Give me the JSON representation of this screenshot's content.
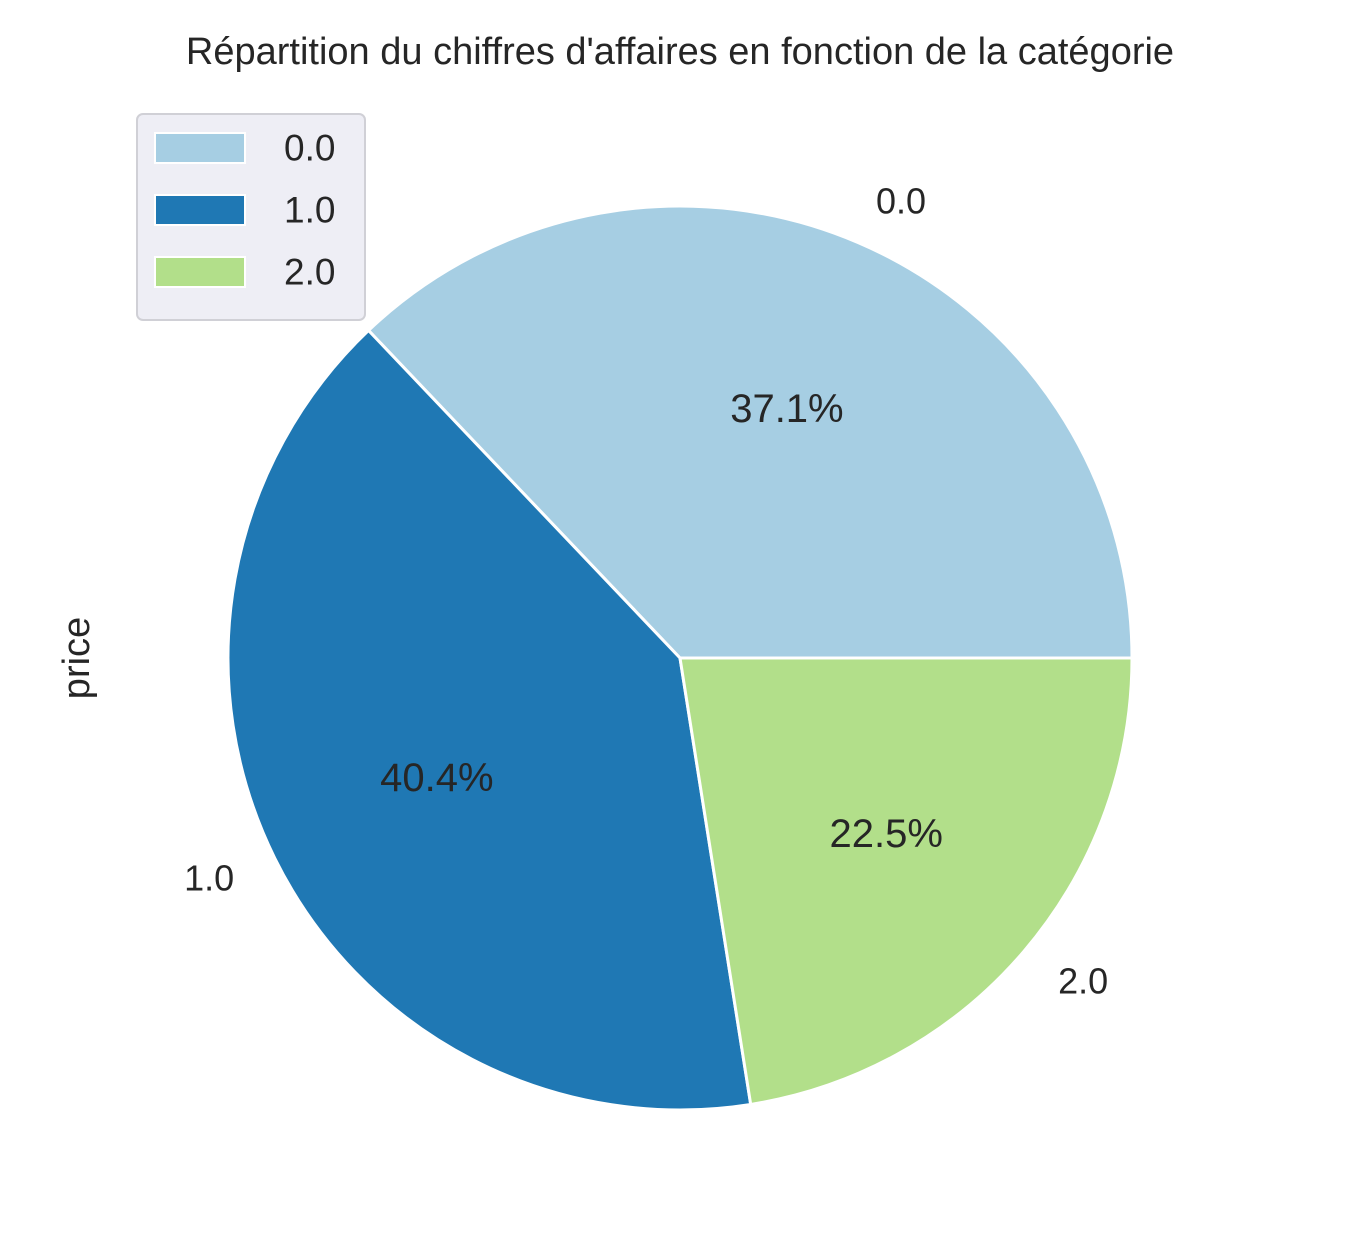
{
  "chart_data": {
    "type": "pie",
    "title": "Répartition du chiffres d'affaires en fonction de la catégorie",
    "ylabel": "price",
    "categories": [
      "0.0",
      "1.0",
      "2.0"
    ],
    "values": [
      37.1,
      40.4,
      22.5
    ],
    "percent_labels": [
      "37.1%",
      "40.4%",
      "22.5%"
    ],
    "colors": [
      "#a6cee3",
      "#1f78b4",
      "#b2df8a"
    ],
    "legend": {
      "entries": [
        "0.0",
        "1.0",
        "2.0"
      ],
      "placement": "upper-left"
    },
    "start_angle_deg": 0,
    "direction": "counterclockwise"
  }
}
